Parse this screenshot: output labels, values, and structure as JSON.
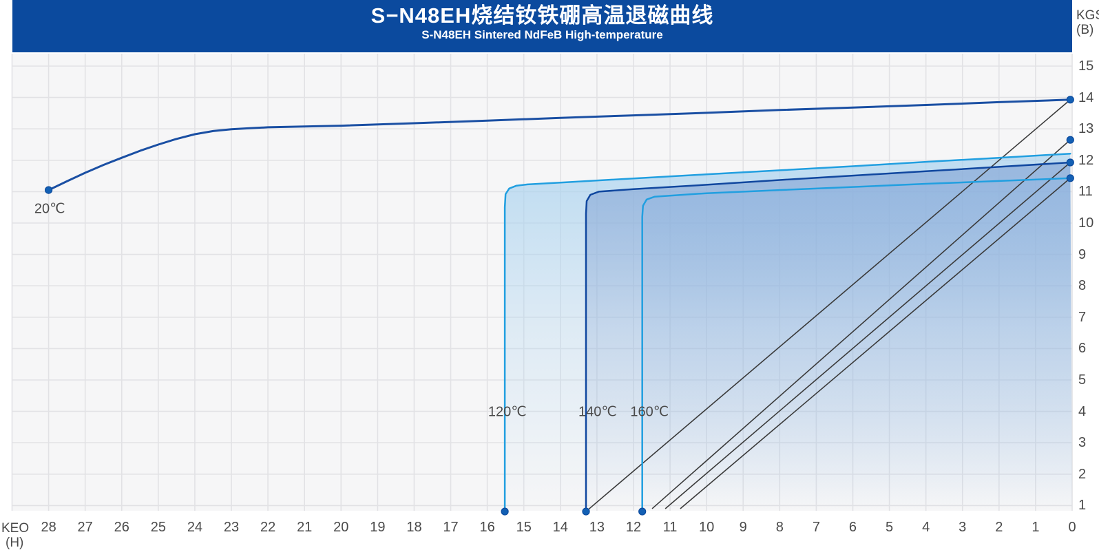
{
  "header": {
    "title": "S−N48EH烧结钕铁硼高温退磁曲线",
    "subtitle": "S-N48EH Sintered NdFeB High-temperature",
    "background_color": "#0b4a9e"
  },
  "chart_data": {
    "type": "line",
    "title": "S−N48EH烧结钕铁硼高温退磁曲线",
    "subtitle": "S-N48EH Sintered NdFeB High-temperature",
    "description": "Demagnetization B-H curves of sintered NdFeB grade S-N48EH at 20/120/140/160 °C with load lines",
    "x_axis": {
      "unit_lines": [
        "KEO",
        "(H)"
      ],
      "direction": "reversed (28 at left, 0 at right)",
      "ticks": [
        28,
        27,
        26,
        25,
        24,
        23,
        22,
        21,
        20,
        19,
        18,
        17,
        16,
        15,
        14,
        13,
        12,
        11,
        10,
        9,
        8,
        7,
        6,
        5,
        4,
        3,
        2,
        1,
        0
      ],
      "range": [
        0,
        29
      ],
      "grid": true
    },
    "y_axis": {
      "unit_lines": [
        "KGS",
        "(B)"
      ],
      "ticks": [
        15,
        14,
        13,
        12,
        11,
        10,
        9,
        8,
        7,
        6,
        5,
        4,
        3,
        2,
        1
      ],
      "range": [
        0.83,
        15.33
      ],
      "grid": true
    },
    "plot_bg": "#f6f6f7",
    "grid_color": "#e2e2e5",
    "load_line_color": "#3a3a3a",
    "dot_fill": "#1360b4",
    "dot_stroke": "#0b4a9e",
    "series": [
      {
        "name": "20℃",
        "color": "#1a4fa3",
        "width": 3,
        "fill": null,
        "label_anchor": [
          27.97,
          10.45
        ],
        "start_dot": [
          28,
          11.05
        ],
        "end_dot": [
          0.05,
          13.93
        ],
        "points": [
          [
            28,
            11.05
          ],
          [
            27.5,
            11.33
          ],
          [
            27,
            11.6
          ],
          [
            26.5,
            11.85
          ],
          [
            26,
            12.08
          ],
          [
            25.5,
            12.3
          ],
          [
            25,
            12.5
          ],
          [
            24.5,
            12.68
          ],
          [
            24,
            12.83
          ],
          [
            23.5,
            12.93
          ],
          [
            23,
            12.99
          ],
          [
            22.5,
            13.02
          ],
          [
            22,
            13.05
          ],
          [
            20,
            13.1
          ],
          [
            18,
            13.18
          ],
          [
            16,
            13.26
          ],
          [
            14,
            13.35
          ],
          [
            12,
            13.43
          ],
          [
            10,
            13.51
          ],
          [
            8,
            13.6
          ],
          [
            6,
            13.68
          ],
          [
            4,
            13.76
          ],
          [
            2,
            13.85
          ],
          [
            0.05,
            13.93
          ]
        ]
      },
      {
        "name": "120℃",
        "color": "#219fe0",
        "width": 2.5,
        "fill": "gradA",
        "label_anchor": [
          15.45,
          4.0
        ],
        "bottom_dot": [
          15.52,
          0.81
        ],
        "points": [
          [
            15.52,
            0.81
          ],
          [
            15.52,
            8
          ],
          [
            15.52,
            10.5
          ],
          [
            15.5,
            10.92
          ],
          [
            15.4,
            11.1
          ],
          [
            15.2,
            11.19
          ],
          [
            14.9,
            11.23
          ],
          [
            14,
            11.29
          ],
          [
            12,
            11.42
          ],
          [
            10,
            11.55
          ],
          [
            8,
            11.68
          ],
          [
            6,
            11.81
          ],
          [
            4,
            11.95
          ],
          [
            2,
            12.08
          ],
          [
            0.05,
            12.21
          ]
        ]
      },
      {
        "name": "140℃",
        "color": "#10479f",
        "width": 2.5,
        "fill": "gradB",
        "label_anchor": [
          12.98,
          4.0
        ],
        "bottom_dot": [
          13.3,
          0.81
        ],
        "end_dot": [
          0.05,
          11.93
        ],
        "points": [
          [
            13.3,
            0.81
          ],
          [
            13.3,
            8
          ],
          [
            13.3,
            10.3
          ],
          [
            13.28,
            10.7
          ],
          [
            13.18,
            10.9
          ],
          [
            12.95,
            11.0
          ],
          [
            12,
            11.08
          ],
          [
            10,
            11.22
          ],
          [
            8,
            11.37
          ],
          [
            6,
            11.51
          ],
          [
            4,
            11.65
          ],
          [
            2,
            11.79
          ],
          [
            0.05,
            11.93
          ]
        ]
      },
      {
        "name": "160℃",
        "color": "#219fe0",
        "width": 2.5,
        "fill": "gradC",
        "label_anchor": [
          11.56,
          4.0
        ],
        "bottom_dot": [
          11.76,
          0.81
        ],
        "end_dot": [
          0.05,
          11.43
        ],
        "points": [
          [
            11.76,
            0.81
          ],
          [
            11.76,
            8
          ],
          [
            11.76,
            10.2
          ],
          [
            11.74,
            10.55
          ],
          [
            11.64,
            10.75
          ],
          [
            11.42,
            10.84
          ],
          [
            10,
            10.95
          ],
          [
            8,
            11.05
          ],
          [
            6,
            11.15
          ],
          [
            4,
            11.25
          ],
          [
            2,
            11.34
          ],
          [
            0.05,
            11.43
          ]
        ]
      }
    ],
    "load_lines": [
      {
        "from": [
          13.3,
          0.81
        ],
        "to": [
          0.05,
          13.93
        ]
      },
      {
        "from": [
          11.49,
          0.9
        ],
        "to": [
          0.05,
          12.65
        ]
      },
      {
        "from": [
          11.13,
          0.9
        ],
        "to": [
          0.05,
          11.93
        ]
      },
      {
        "from": [
          10.72,
          0.9
        ],
        "to": [
          0.05,
          11.43
        ]
      }
    ],
    "extra_dots": [
      [
        0.05,
        12.65
      ]
    ],
    "fill_gradients": [
      {
        "id": "gradA",
        "color": "#a9d2ef",
        "opacity": 0.7
      },
      {
        "id": "gradB",
        "color": "#7b9cd0",
        "opacity": 0.55
      },
      {
        "id": "gradC",
        "color": "#8fb4e0",
        "opacity": 0.4
      }
    ],
    "legend_position": "labels next to curves"
  }
}
